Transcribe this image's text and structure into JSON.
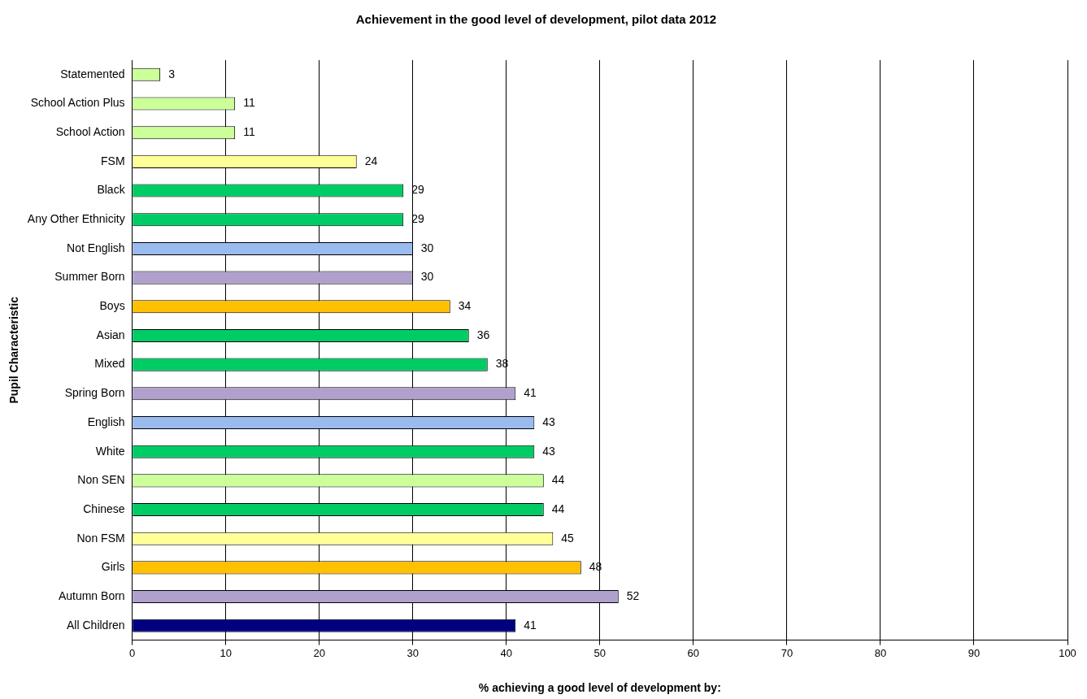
{
  "chart_data": {
    "type": "bar",
    "orientation": "horizontal",
    "title": "Achievement in the good level of development, pilot data 2012",
    "xlabel": "% achieving a good level of development by:",
    "ylabel": "Pupil Characteristic",
    "categories": [
      "Statemented",
      "School Action Plus",
      "School Action",
      "FSM",
      "Black",
      "Any Other Ethnicity",
      "Not English",
      "Summer Born",
      "Boys",
      "Asian",
      "Mixed",
      "Spring Born",
      "English",
      "White",
      "Non SEN",
      "Chinese",
      "Non FSM",
      "Girls",
      "Autumn Born",
      "All Children"
    ],
    "values": [
      3,
      11,
      11,
      24,
      29,
      29,
      30,
      30,
      34,
      36,
      38,
      41,
      43,
      43,
      44,
      44,
      45,
      48,
      52,
      41
    ],
    "colors": [
      "#ccff99",
      "#ccff99",
      "#ccff99",
      "#ffff99",
      "#00cc66",
      "#00cc66",
      "#99bbee",
      "#b0a0cc",
      "#ffc000",
      "#00cc66",
      "#00cc66",
      "#b0a0cc",
      "#99bbee",
      "#00cc66",
      "#ccff99",
      "#00cc66",
      "#ffff99",
      "#ffc000",
      "#b0a0cc",
      "#000080"
    ],
    "xlim": [
      0,
      100
    ],
    "xticks": [
      0,
      10,
      20,
      30,
      40,
      50,
      60,
      70,
      80,
      90,
      100
    ],
    "grid": "x",
    "data_labels": true,
    "legend": false
  }
}
